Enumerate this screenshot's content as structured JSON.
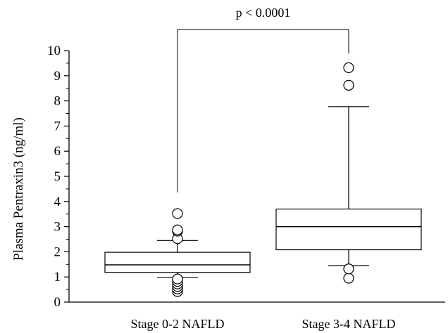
{
  "chart_data": {
    "type": "box",
    "ylabel": "Plasma Pentraxin3 (ng/ml)",
    "xlabel": "",
    "ylim": [
      0,
      10
    ],
    "yticks": [
      "0",
      "1",
      "2",
      "3",
      "4",
      "5",
      "6",
      "7",
      "8",
      "9",
      "10"
    ],
    "grid": false,
    "categories": [
      "Stage 0-2 NAFLD",
      "Stage 3-4 NAFLD"
    ],
    "boxes": [
      {
        "category": "Stage 0-2 NAFLD",
        "whisker_low": 0.98,
        "q1": 1.18,
        "median": 1.48,
        "q3": 1.98,
        "whisker_high": 2.45,
        "outliers": [
          0.42,
          0.52,
          0.62,
          0.72,
          0.82,
          0.92,
          2.52,
          2.82,
          2.87,
          3.52
        ]
      },
      {
        "category": "Stage 3-4 NAFLD",
        "whisker_low": 1.45,
        "q1": 2.08,
        "median": 3.0,
        "q3": 3.7,
        "whisker_high": 7.77,
        "outliers": [
          0.95,
          1.32,
          8.62,
          9.32
        ]
      }
    ],
    "annotations": [
      {
        "text": "p < 0.0001",
        "type": "significance-bracket",
        "between": [
          "Stage 0-2 NAFLD",
          "Stage 3-4 NAFLD"
        ]
      }
    ]
  }
}
